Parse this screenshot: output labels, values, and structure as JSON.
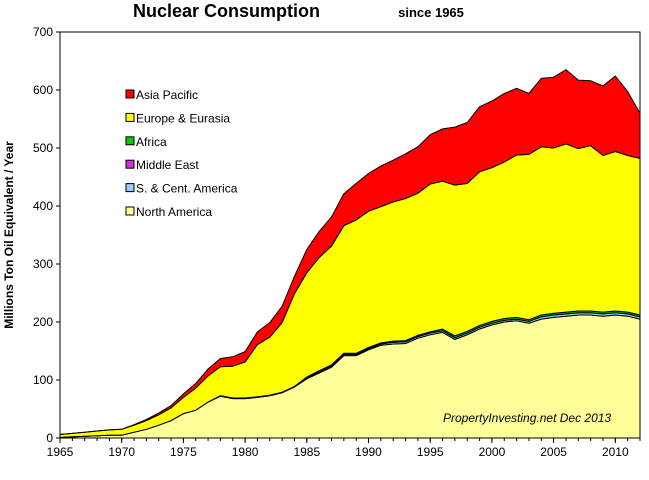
{
  "chart_data": {
    "type": "area",
    "stacked": true,
    "title": "Nuclear Consumption",
    "subtitle": "since 1965",
    "ylabel": "Millions Ton Oil Equivalent / Year",
    "xlabel": "",
    "xlim": [
      1965,
      2012
    ],
    "ylim": [
      0,
      700
    ],
    "x_ticks": [
      1965,
      1970,
      1975,
      1980,
      1985,
      1990,
      1995,
      2000,
      2005,
      2010
    ],
    "y_ticks": [
      0,
      100,
      200,
      300,
      400,
      500,
      600,
      700
    ],
    "grid": false,
    "legend_position": "top-left",
    "annotation": "PropertyInvesting.net  Dec 2013",
    "x": [
      1965,
      1966,
      1967,
      1968,
      1969,
      1970,
      1971,
      1972,
      1973,
      1974,
      1975,
      1976,
      1977,
      1978,
      1979,
      1980,
      1981,
      1982,
      1983,
      1984,
      1985,
      1986,
      1987,
      1988,
      1989,
      1990,
      1991,
      1992,
      1993,
      1994,
      1995,
      1996,
      1997,
      1998,
      1999,
      2000,
      2001,
      2002,
      2003,
      2004,
      2005,
      2006,
      2007,
      2008,
      2009,
      2010,
      2011,
      2012
    ],
    "series": [
      {
        "name": "North America",
        "color": "#FFFF99",
        "values": [
          1,
          2,
          3,
          4,
          5,
          5,
          10,
          15,
          22,
          30,
          42,
          48,
          62,
          72,
          68,
          68,
          70,
          73,
          78,
          88,
          102,
          112,
          122,
          142,
          142,
          152,
          160,
          162,
          163,
          172,
          178,
          182,
          170,
          178,
          188,
          195,
          200,
          202,
          198,
          205,
          208,
          210,
          212,
          212,
          210,
          212,
          210,
          205
        ]
      },
      {
        "name": "S. & Cent. America",
        "color": "#99CCFF",
        "values": [
          0,
          0,
          0,
          0,
          0,
          0,
          0,
          0,
          0,
          0,
          0,
          0,
          0,
          1,
          1,
          1,
          1,
          1,
          1,
          1,
          2,
          2,
          2,
          2,
          2,
          2,
          2,
          3,
          3,
          3,
          3,
          3,
          3,
          3,
          3,
          3,
          3,
          3,
          3,
          4,
          4,
          4,
          4,
          4,
          4,
          4,
          4,
          4
        ]
      },
      {
        "name": "Middle East",
        "color": "#CC33CC",
        "values": [
          0,
          0,
          0,
          0,
          0,
          0,
          0,
          0,
          0,
          0,
          0,
          0,
          0,
          0,
          0,
          0,
          0,
          0,
          0,
          0,
          0,
          0,
          0,
          0,
          0,
          0,
          0,
          0,
          0,
          0,
          0,
          0,
          0,
          0,
          0,
          0,
          0,
          0,
          0,
          0,
          0,
          0,
          0,
          0,
          0,
          0,
          0,
          0
        ]
      },
      {
        "name": "Africa",
        "color": "#00CC00",
        "values": [
          0,
          0,
          0,
          0,
          0,
          0,
          0,
          0,
          0,
          0,
          0,
          0,
          0,
          0,
          0,
          0,
          0,
          0,
          0,
          0,
          1,
          2,
          2,
          2,
          2,
          2,
          2,
          2,
          2,
          2,
          2,
          3,
          3,
          3,
          3,
          3,
          3,
          3,
          3,
          3,
          3,
          3,
          3,
          3,
          3,
          3,
          3,
          3
        ]
      },
      {
        "name": "Europe & Eurasia",
        "color": "#FFFF00",
        "values": [
          5,
          6,
          7,
          8,
          9,
          10,
          12,
          15,
          18,
          22,
          28,
          38,
          45,
          50,
          55,
          62,
          90,
          100,
          120,
          160,
          180,
          195,
          205,
          220,
          230,
          235,
          235,
          240,
          245,
          245,
          255,
          255,
          260,
          255,
          265,
          265,
          270,
          280,
          285,
          290,
          285,
          290,
          280,
          285,
          270,
          275,
          270,
          270
        ]
      },
      {
        "name": "Asia Pacific",
        "color": "#FF0000",
        "values": [
          0,
          0,
          0,
          0,
          0,
          0,
          1,
          2,
          3,
          4,
          6,
          8,
          12,
          14,
          16,
          18,
          22,
          25,
          28,
          30,
          40,
          45,
          50,
          55,
          63,
          65,
          70,
          72,
          77,
          80,
          85,
          90,
          100,
          105,
          112,
          115,
          118,
          115,
          105,
          118,
          122,
          128,
          118,
          112,
          120,
          130,
          110,
          78
        ]
      }
    ]
  }
}
